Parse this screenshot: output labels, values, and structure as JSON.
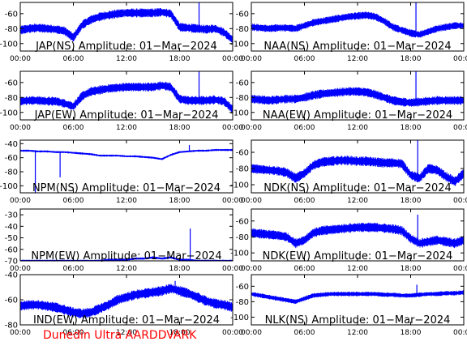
{
  "footer": "Dunedin Ultra AARDDVARK",
  "colors": {
    "trace": "#0000ff",
    "axes": "#000000",
    "background": "#ffffff",
    "footer": "#ff0000"
  },
  "chart_data": [
    {
      "type": "line",
      "title": "JAP(NS) Amplitude: 01−Mar−2024",
      "xticks": [
        "00:00",
        "06:00",
        "12:00",
        "18:00",
        "00:00"
      ],
      "xlim": [
        0,
        24
      ],
      "ylim": [
        -110,
        -45
      ],
      "yticks": [
        -100,
        -80,
        -60
      ],
      "x": [
        0,
        1,
        2,
        3,
        4,
        5,
        6,
        7,
        8,
        9,
        10,
        11,
        12,
        13,
        14,
        15,
        16,
        17,
        18,
        19,
        20,
        21,
        22,
        23,
        24
      ],
      "y": [
        -82,
        -80,
        -79,
        -80,
        -81,
        -83,
        -92,
        -75,
        -68,
        -64,
        -62,
        -60,
        -59,
        -59,
        -59,
        -59,
        -58,
        -60,
        -78,
        -79,
        -80,
        -81,
        -80,
        -85,
        -95
      ],
      "spread": 6,
      "spikes": [
        {
          "x": 20.2,
          "y": -45
        }
      ]
    },
    {
      "type": "line",
      "title": "NAA(NS) Amplitude: 01−Mar−2024",
      "xticks": [
        "00:00",
        "06:00",
        "12:00",
        "18:00",
        "00:00"
      ],
      "xlim": [
        0,
        24
      ],
      "ylim": [
        -110,
        -45
      ],
      "yticks": [
        -100,
        -80,
        -60
      ],
      "x": [
        0,
        1,
        2,
        3,
        4,
        5,
        6,
        7,
        8,
        9,
        10,
        11,
        12,
        13,
        14,
        15,
        16,
        17,
        18,
        19,
        20,
        21,
        22,
        23,
        24
      ],
      "y": [
        -78,
        -79,
        -80,
        -79,
        -79,
        -80,
        -76,
        -72,
        -70,
        -68,
        -66,
        -64,
        -63,
        -62,
        -64,
        -70,
        -78,
        -82,
        -86,
        -88,
        -84,
        -80,
        -78,
        -76,
        -76
      ],
      "spread": 5,
      "spikes": [
        {
          "x": 18.6,
          "y": -45
        }
      ]
    },
    {
      "type": "line",
      "title": "JAP(EW) Amplitude: 01−Mar−2024",
      "xticks": [
        "00:00",
        "06:00",
        "12:00",
        "18:00",
        "00:00"
      ],
      "xlim": [
        0,
        24
      ],
      "ylim": [
        -110,
        -45
      ],
      "yticks": [
        -100,
        -80,
        -60
      ],
      "x": [
        0,
        1,
        2,
        3,
        4,
        5,
        6,
        7,
        8,
        9,
        10,
        11,
        12,
        13,
        14,
        15,
        16,
        17,
        18,
        19,
        20,
        21,
        22,
        23,
        24
      ],
      "y": [
        -85,
        -84,
        -84,
        -85,
        -85,
        -88,
        -92,
        -78,
        -72,
        -70,
        -68,
        -67,
        -66,
        -66,
        -66,
        -66,
        -64,
        -66,
        -82,
        -84,
        -84,
        -84,
        -83,
        -85,
        -96
      ],
      "spread": 6,
      "spikes": [
        {
          "x": 20.2,
          "y": -45
        }
      ]
    },
    {
      "type": "line",
      "title": "NAA(EW) Amplitude: 01−Mar−2024",
      "xticks": [
        "00:00",
        "06:00",
        "12:00",
        "18:00",
        "00:00"
      ],
      "xlim": [
        0,
        24
      ],
      "ylim": [
        -110,
        -45
      ],
      "yticks": [
        -100,
        -80,
        -60
      ],
      "x": [
        0,
        1,
        2,
        3,
        4,
        5,
        6,
        7,
        8,
        9,
        10,
        11,
        12,
        13,
        14,
        15,
        16,
        17,
        18,
        19,
        20,
        21,
        22,
        23,
        24
      ],
      "y": [
        -82,
        -83,
        -84,
        -83,
        -82,
        -82,
        -80,
        -77,
        -75,
        -74,
        -73,
        -72,
        -72,
        -73,
        -76,
        -80,
        -84,
        -86,
        -87,
        -86,
        -85,
        -84,
        -84,
        -84,
        -84
      ],
      "spread": 6,
      "spikes": [
        {
          "x": 18.6,
          "y": -45
        }
      ]
    },
    {
      "type": "line",
      "title": "NPM(NS) Amplitude: 01−Mar−2024",
      "xticks": [
        "00:00",
        "06:00",
        "12:00",
        "18:00",
        "00:00"
      ],
      "xlim": [
        0,
        24
      ],
      "ylim": [
        -110,
        -35
      ],
      "yticks": [
        -100,
        -80,
        -60,
        -40
      ],
      "x": [
        0,
        1,
        2,
        3,
        4,
        5,
        6,
        7,
        8,
        9,
        10,
        11,
        12,
        13,
        14,
        15,
        16,
        17,
        18,
        19,
        20,
        21,
        22,
        23,
        24
      ],
      "y": [
        -50,
        -50,
        -51,
        -51,
        -52,
        -52,
        -53,
        -54,
        -55,
        -57,
        -57,
        -57,
        -58,
        -58,
        -59,
        -60,
        -62,
        -56,
        -52,
        -51,
        -50,
        -50,
        -49,
        -49,
        -49
      ],
      "spread": 1.5,
      "spikes": [
        {
          "x": 1.7,
          "y": -110
        },
        {
          "x": 4.5,
          "y": -88
        },
        {
          "x": 19.1,
          "y": -42
        }
      ]
    },
    {
      "type": "line",
      "title": "NDK(NS) Amplitude: 01−Mar−2024",
      "xticks": [
        "00:00",
        "06:00",
        "12:00",
        "18:00",
        "00:00"
      ],
      "xlim": [
        0,
        24
      ],
      "ylim": [
        -110,
        -45
      ],
      "yticks": [
        -100,
        -80,
        -60
      ],
      "x": [
        0,
        1,
        2,
        3,
        4,
        5,
        6,
        7,
        8,
        9,
        10,
        11,
        12,
        13,
        14,
        15,
        16,
        17,
        18,
        19,
        20,
        21,
        22,
        23,
        24
      ],
      "y": [
        -80,
        -81,
        -82,
        -83,
        -85,
        -92,
        -86,
        -76,
        -72,
        -71,
        -70,
        -70,
        -71,
        -71,
        -72,
        -73,
        -73,
        -74,
        -88,
        -92,
        -80,
        -82,
        -90,
        -96,
        -86
      ],
      "spread": 6,
      "spikes": [
        {
          "x": 18.8,
          "y": -45
        }
      ]
    },
    {
      "type": "line",
      "title": "NPM(EW) Amplitude: 01−Mar−2024",
      "xticks": [
        "00:00",
        "06:00",
        "12:00",
        "18:00",
        "00:00"
      ],
      "xlim": [
        0,
        24
      ],
      "ylim": [
        -70,
        -25
      ],
      "yticks": [
        -70,
        -60,
        -50,
        -40,
        -30
      ],
      "x": [
        0,
        1,
        2,
        3,
        4,
        5,
        6,
        7,
        8,
        9,
        10,
        11,
        12,
        13,
        14,
        15,
        16,
        17,
        18,
        19,
        20,
        21,
        22,
        23,
        24
      ],
      "y": [
        -70,
        -70,
        -70,
        -70,
        -70,
        -70,
        -70,
        -70,
        -70,
        -70,
        -69,
        -69,
        -69,
        -68,
        -68,
        -67,
        -68,
        -67,
        -69,
        -69,
        -70,
        -70,
        -70,
        -70,
        -70
      ],
      "spread": 1,
      "spikes": [
        {
          "x": 19.2,
          "y": -42
        }
      ]
    },
    {
      "type": "line",
      "title": "NDK(EW) Amplitude: 01−Mar−2024",
      "xticks": [
        "00:00",
        "06:00",
        "12:00",
        "18:00",
        "00:00"
      ],
      "xlim": [
        0,
        24
      ],
      "ylim": [
        -110,
        -45
      ],
      "yticks": [
        -100,
        -80,
        -60
      ],
      "x": [
        0,
        1,
        2,
        3,
        4,
        5,
        6,
        7,
        8,
        9,
        10,
        11,
        12,
        13,
        14,
        15,
        16,
        17,
        18,
        19,
        20,
        21,
        22,
        23,
        24
      ],
      "y": [
        -75,
        -76,
        -77,
        -78,
        -80,
        -88,
        -84,
        -75,
        -72,
        -71,
        -70,
        -69,
        -68,
        -68,
        -68,
        -69,
        -70,
        -72,
        -82,
        -88,
        -86,
        -84,
        -86,
        -88,
        -84
      ],
      "spread": 6,
      "spikes": [
        {
          "x": 18.8,
          "y": -52
        }
      ]
    },
    {
      "type": "line",
      "title": "IND(EW) Amplitude: 01−Mar−2024",
      "xticks": [
        "00:00",
        "06:00",
        "12:00",
        "18:00",
        "00:00"
      ],
      "xlim": [
        0,
        24
      ],
      "ylim": [
        -80,
        -40
      ],
      "yticks": [
        -80,
        -60,
        -40
      ],
      "x": [
        0,
        1,
        2,
        3,
        4,
        5,
        6,
        7,
        8,
        9,
        10,
        11,
        12,
        13,
        14,
        15,
        16,
        17,
        18,
        19,
        20,
        21,
        22,
        23,
        24
      ],
      "y": [
        -65,
        -64,
        -64,
        -65,
        -66,
        -68,
        -70,
        -71,
        -70,
        -67,
        -64,
        -60,
        -58,
        -56,
        -55,
        -54,
        -53,
        -51,
        -53,
        -55,
        -58,
        -61,
        -63,
        -64,
        -66
      ],
      "spread": 4,
      "spikes": [
        {
          "x": 17.5,
          "y": -45
        }
      ]
    },
    {
      "type": "line",
      "title": "NLK(NS) Amplitude: 01−Mar−2024",
      "xticks": [
        "00:00",
        "06:00",
        "12:00",
        "18:00",
        "00:00"
      ],
      "xlim": [
        0,
        24
      ],
      "ylim": [
        -110,
        -45
      ],
      "yticks": [
        -100,
        -80,
        -60
      ],
      "x": [
        0,
        1,
        2,
        3,
        4,
        5,
        6,
        7,
        8,
        9,
        10,
        11,
        12,
        13,
        14,
        15,
        16,
        17,
        18,
        19,
        20,
        21,
        22,
        23,
        24
      ],
      "y": [
        -70,
        -72,
        -74,
        -76,
        -78,
        -80,
        -76,
        -72,
        -71,
        -70,
        -70,
        -70,
        -70,
        -70,
        -70,
        -71,
        -71,
        -72,
        -72,
        -71,
        -70,
        -70,
        -69,
        -69,
        -68
      ],
      "spread": 3,
      "spikes": [
        {
          "x": 18.7,
          "y": -58
        }
      ]
    }
  ]
}
